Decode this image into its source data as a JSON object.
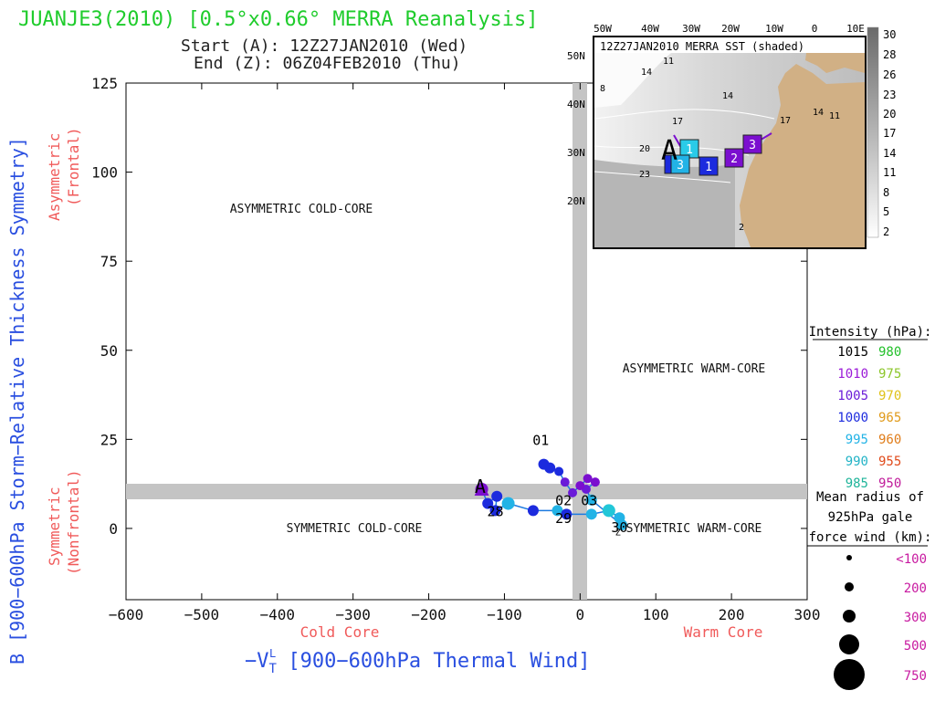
{
  "chart_data": {
    "type": "scatter",
    "title": "JUANJE3(2010) [0.5°x0.66° MERRA Reanalysis]",
    "start_line": "Start (A): 12Z27JAN2010 (Wed)",
    "end_line": "End (Z): 06Z04FEB2010 (Thu)",
    "xlabel_parts": [
      "−V",
      "T",
      "L",
      " [900−600hPa Thermal Wind]"
    ],
    "ylabel": "B [900−600hPa Storm−Relative Thickness Symmetry]",
    "y_top_label": [
      "Asymmetric",
      "(Frontal)"
    ],
    "y_bottom_label": [
      "Symmetric",
      "(Nonfrontal)"
    ],
    "x_left_label": "Cold Core",
    "x_right_label": "Warm Core",
    "xlim": [
      -600,
      300
    ],
    "ylim": [
      -20,
      125
    ],
    "xticks": [
      -600,
      -500,
      -400,
      -300,
      -200,
      -100,
      0,
      100,
      200,
      300
    ],
    "xtick_labels": [
      "−600",
      "−500",
      "−400",
      "−300",
      "−200",
      "−100",
      "0",
      "100",
      "200",
      "300"
    ],
    "yticks": [
      0,
      25,
      50,
      75,
      100,
      125
    ],
    "quadrants": {
      "upper_left": "ASYMMETRIC COLD-CORE",
      "upper_right": "ASYMMETRIC WARM-CORE",
      "lower_left": "SYMMETRIC COLD-CORE",
      "lower_right": "SYMMETRIC WARM-CORE"
    },
    "track": [
      {
        "x": -130,
        "y": 11,
        "color": "#7b0fcf",
        "size": 7
      },
      {
        "x": -122,
        "y": 7,
        "color": "#1c2bde",
        "size": 6
      },
      {
        "x": -110,
        "y": 9,
        "color": "#1c2bde",
        "size": 6
      },
      {
        "x": -112,
        "y": 5,
        "color": "#1c2bde",
        "size": 6
      },
      {
        "x": -95,
        "y": 7,
        "color": "#22b3e6",
        "size": 7
      },
      {
        "x": -62,
        "y": 5,
        "color": "#1c2bde",
        "size": 6
      },
      {
        "x": -30,
        "y": 5,
        "color": "#22b3e6",
        "size": 6
      },
      {
        "x": -18,
        "y": 4,
        "color": "#1c2bde",
        "size": 6
      },
      {
        "x": 15,
        "y": 4,
        "color": "#22b3e6",
        "size": 6
      },
      {
        "x": 38,
        "y": 5,
        "color": "#22c7d8",
        "size": 7
      },
      {
        "x": 52,
        "y": 3,
        "color": "#22b3e6",
        "size": 6
      },
      {
        "x": 55,
        "y": 1,
        "color": "#22b3e6",
        "size": 6
      },
      {
        "x": 15,
        "y": 8,
        "color": "#22b3e6",
        "size": 6
      },
      {
        "x": 8,
        "y": 11,
        "color": "#6a1bd8",
        "size": 5
      },
      {
        "x": 20,
        "y": 13,
        "color": "#7b0fcf",
        "size": 5
      },
      {
        "x": 10,
        "y": 14,
        "color": "#7b0fcf",
        "size": 5
      },
      {
        "x": 0,
        "y": 12,
        "color": "#7b0fcf",
        "size": 5
      },
      {
        "x": -10,
        "y": 10,
        "color": "#6a1bd8",
        "size": 5
      },
      {
        "x": -20,
        "y": 13,
        "color": "#6a1bd8",
        "size": 5
      },
      {
        "x": -28,
        "y": 16,
        "color": "#1c2bde",
        "size": 5
      },
      {
        "x": -40,
        "y": 17,
        "color": "#1c2bde",
        "size": 6
      },
      {
        "x": -48,
        "y": 18,
        "color": "#1c2bde",
        "size": 6
      }
    ],
    "track_labels": [
      {
        "text": "A",
        "x": -132,
        "y": 10,
        "size": 20
      },
      {
        "text": "28",
        "x": -112,
        "y": 3.5,
        "size": 15
      },
      {
        "text": "29",
        "x": -22,
        "y": 1.5,
        "size": 15
      },
      {
        "text": "30",
        "x": 52,
        "y": -1,
        "size": 15
      },
      {
        "text": "01",
        "x": -52,
        "y": 8.8,
        "size": 15,
        "dy": -57
      },
      {
        "text": "02",
        "x": -22,
        "y": 6.5,
        "size": 15
      },
      {
        "text": "03",
        "x": 12,
        "y": 6.5,
        "size": 15
      },
      {
        "text": "Z",
        "x": 50,
        "y": -2,
        "size": 10
      }
    ]
  },
  "inset": {
    "title": "12Z27JAN2010 MERRA SST (shaded)",
    "lon_labels": [
      "50W",
      "40W",
      "30W",
      "20W",
      "10W",
      "0",
      "10E"
    ],
    "lat_labels": [
      "50N",
      "40N",
      "30N",
      "20N"
    ],
    "contour_labels": [
      "11",
      "14",
      "14",
      "8",
      "17",
      "20",
      "23",
      "17",
      "14",
      "11",
      "2"
    ],
    "markers": [
      {
        "label": "1",
        "color": "#2acbe8"
      },
      {
        "label": "2",
        "color": "#1c2bde"
      },
      {
        "label": "3",
        "color": "#22b3e6"
      },
      {
        "label": "1",
        "color": "#1c2bde"
      },
      {
        "label": "2",
        "color": "#7b0fcf"
      },
      {
        "label": "3",
        "color": "#7b0fcf"
      }
    ],
    "start_marker": "A",
    "colorbar_ticks": [
      "30",
      "28",
      "26",
      "23",
      "20",
      "17",
      "14",
      "11",
      "8",
      "5",
      "2"
    ]
  },
  "legend": {
    "intensity_title": "Intensity (hPa):",
    "intensity_left": [
      {
        "value": "1015",
        "color": "#000000"
      },
      {
        "value": "1010",
        "color": "#9b1bd8"
      },
      {
        "value": "1005",
        "color": "#6a1bd8"
      },
      {
        "value": "1000",
        "color": "#1c2bde"
      },
      {
        "value": "995",
        "color": "#22b3e6"
      },
      {
        "value": "990",
        "color": "#22b3c6"
      },
      {
        "value": "985",
        "color": "#1fb49a"
      }
    ],
    "intensity_right": [
      {
        "value": "980",
        "color": "#22c02a"
      },
      {
        "value": "975",
        "color": "#8cc62a"
      },
      {
        "value": "970",
        "color": "#e0c21a"
      },
      {
        "value": "965",
        "color": "#e09a1a"
      },
      {
        "value": "960",
        "color": "#e07d1a"
      },
      {
        "value": "955",
        "color": "#e04a1a"
      },
      {
        "value": "950",
        "color": "#c01a9a"
      }
    ],
    "radius_title": [
      "Mean radius of",
      "925hPa gale",
      "force wind (km):"
    ],
    "radius_items": [
      {
        "label": "<100",
        "r": 3
      },
      {
        "label": "200",
        "r": 5
      },
      {
        "label": "300",
        "r": 7
      },
      {
        "label": "500",
        "r": 11
      },
      {
        "label": "750",
        "r": 17
      }
    ]
  }
}
